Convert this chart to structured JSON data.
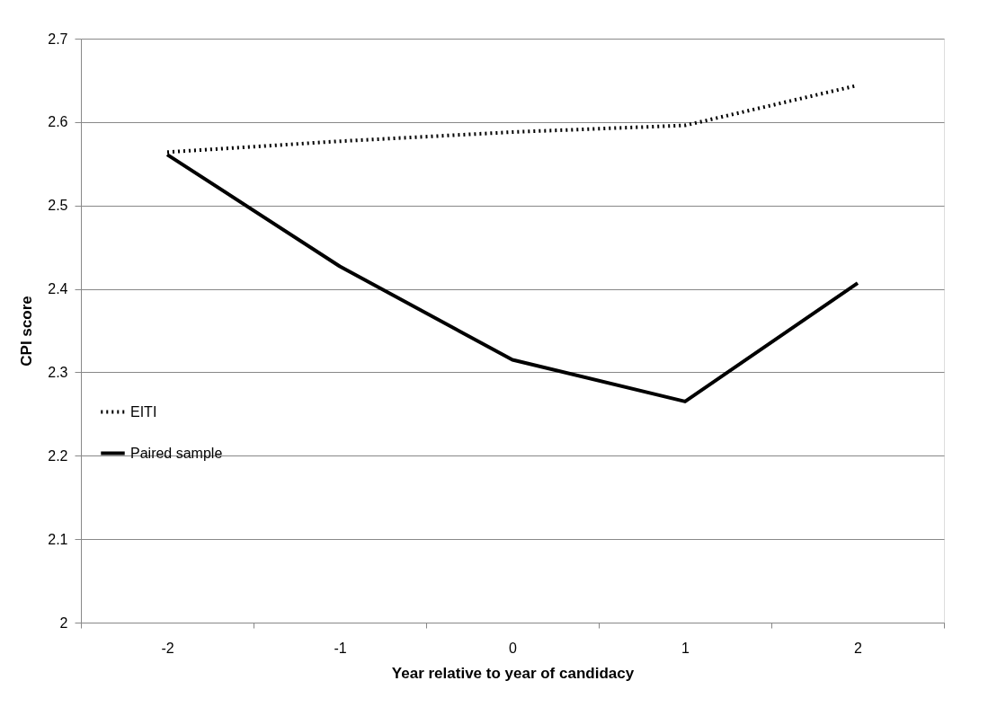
{
  "chart_data": {
    "type": "line",
    "xlabel": "Year relative to year of candidacy",
    "ylabel": "CPI score",
    "categories": [
      "-2",
      "-1",
      "0",
      "1",
      "2"
    ],
    "series": [
      {
        "name": "EITI",
        "color": "#000000",
        "line_style": "dotted",
        "values": [
          2.564,
          2.577,
          2.588,
          2.596,
          2.644
        ]
      },
      {
        "name": "Paired sample",
        "color": "#000000",
        "line_style": "solid",
        "values": [
          2.561,
          2.427,
          2.315,
          2.265,
          2.407
        ]
      }
    ],
    "ylim": [
      2,
      2.7
    ],
    "yticks": [
      2,
      2.1,
      2.2,
      2.3,
      2.4,
      2.5,
      2.6,
      2.7
    ],
    "grid": "y",
    "legend": "left",
    "marker": "none"
  }
}
